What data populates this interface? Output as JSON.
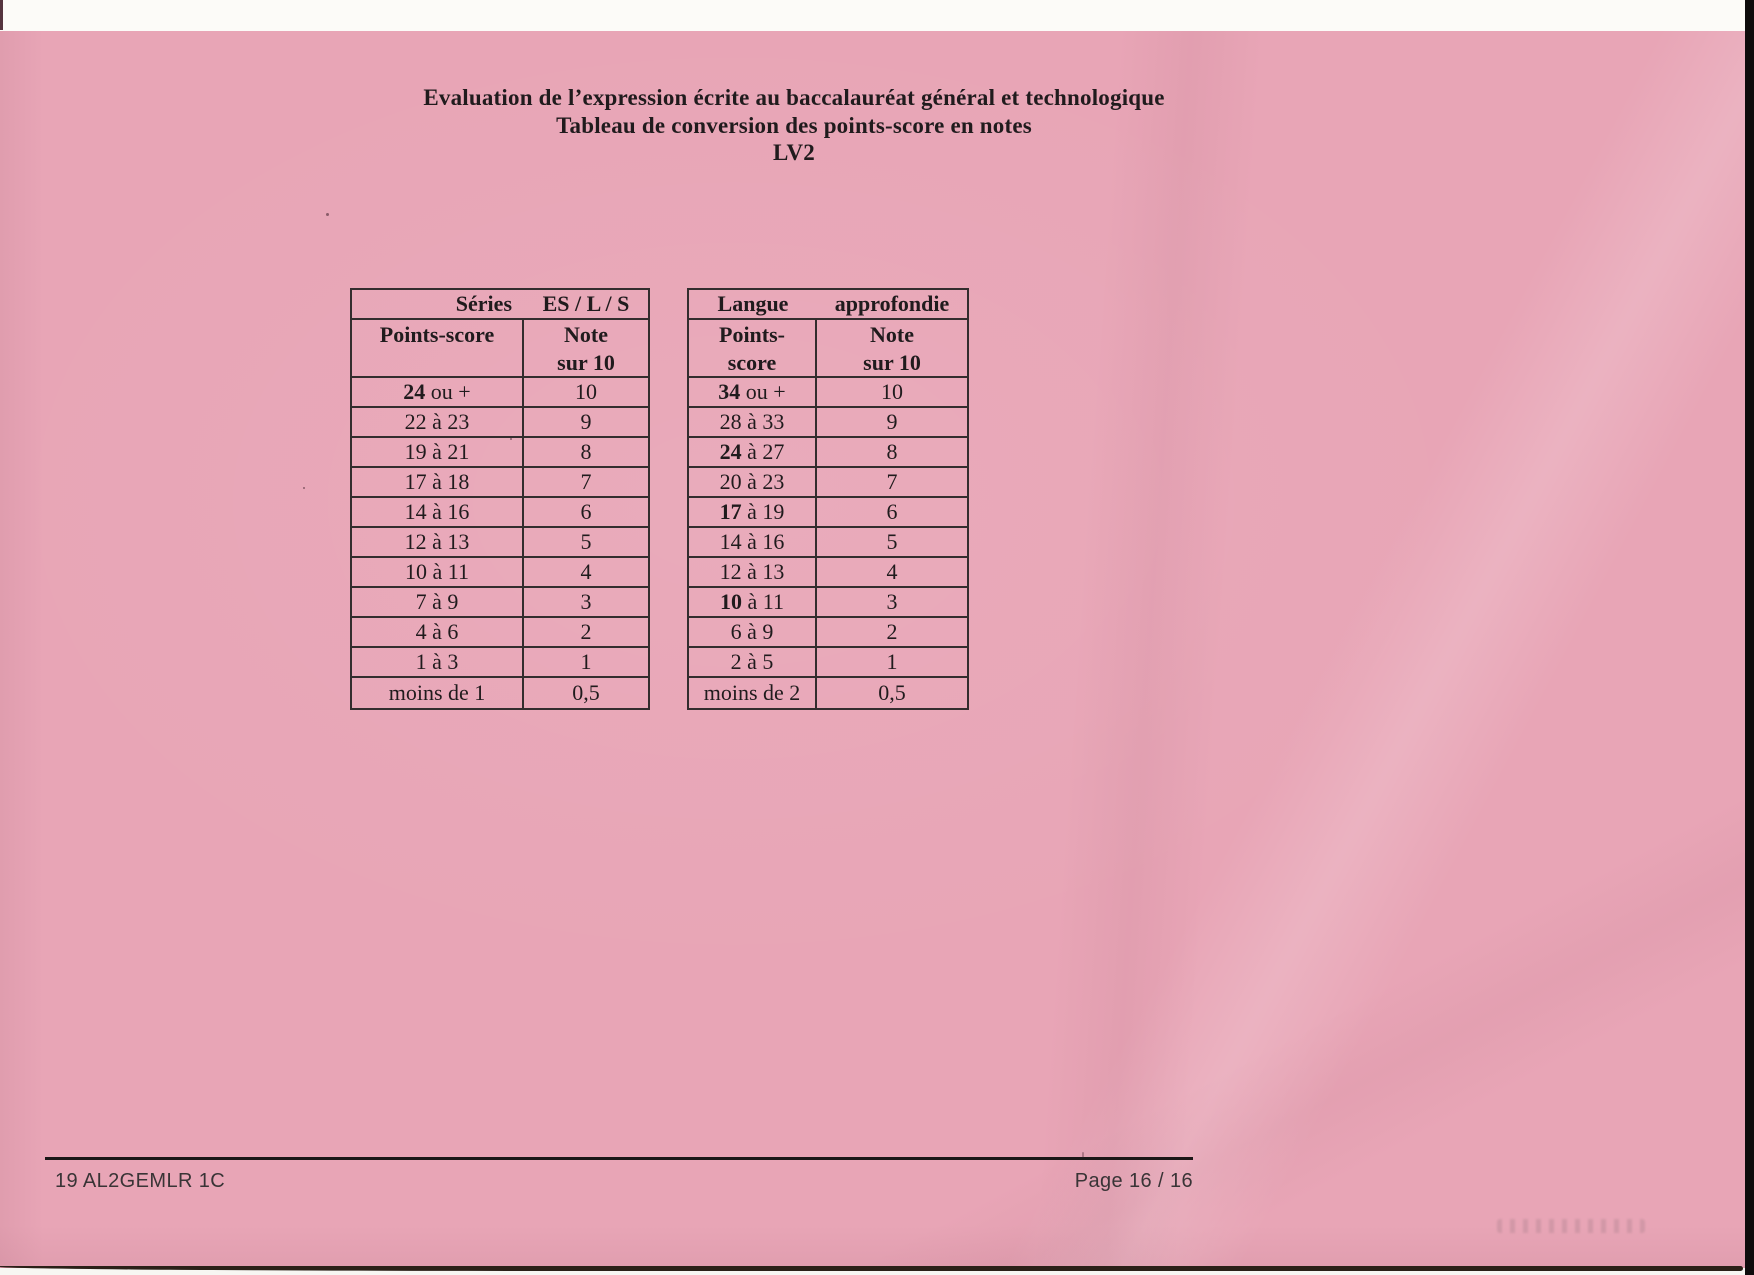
{
  "title": {
    "line1": "Evaluation de l’expression écrite au baccalauréat général et technologique",
    "line2": "Tableau de conversion des points-score en notes",
    "line3": "LV2"
  },
  "tables": {
    "left": {
      "header_label": "Séries",
      "header_value": "ES / L / S",
      "col1_header_line1": "Points-score",
      "col1_header_line2": "",
      "col2_header_line1": "Note",
      "col2_header_line2": "sur 10",
      "rows": [
        {
          "score_bold": "24",
          "score_rest": "ou +",
          "note": "10"
        },
        {
          "score_bold": "",
          "score_rest": "22 à 23",
          "note": "9"
        },
        {
          "score_bold": "",
          "score_rest": "19 à 21",
          "note": "8"
        },
        {
          "score_bold": "",
          "score_rest": "17 à 18",
          "note": "7"
        },
        {
          "score_bold": "",
          "score_rest": "14 à 16",
          "note": "6"
        },
        {
          "score_bold": "",
          "score_rest": "12 à 13",
          "note": "5"
        },
        {
          "score_bold": "",
          "score_rest": "10 à 11",
          "note": "4"
        },
        {
          "score_bold": "",
          "score_rest": "7 à 9",
          "note": "3"
        },
        {
          "score_bold": "",
          "score_rest": "4 à 6",
          "note": "2"
        },
        {
          "score_bold": "",
          "score_rest": "1 à 3",
          "note": "1"
        },
        {
          "score_bold": "",
          "score_rest": "moins de 1",
          "note": "0,5"
        }
      ]
    },
    "right": {
      "header_label": "Langue",
      "header_value": "approfondie",
      "col1_header_line1": "Points-",
      "col1_header_line2": "score",
      "col2_header_line1": "Note",
      "col2_header_line2": "sur 10",
      "rows": [
        {
          "score_bold": "34",
          "score_rest": "ou +",
          "note": "10"
        },
        {
          "score_bold": "",
          "score_rest": "28 à 33",
          "note": "9"
        },
        {
          "score_bold": "24",
          "score_rest": "à 27",
          "note": "8"
        },
        {
          "score_bold": "",
          "score_rest": "20 à 23",
          "note": "7"
        },
        {
          "score_bold": "17",
          "score_rest": "à 19",
          "note": "6"
        },
        {
          "score_bold": "",
          "score_rest": "14 à 16",
          "note": "5"
        },
        {
          "score_bold": "",
          "score_rest": "12 à 13",
          "note": "4"
        },
        {
          "score_bold": "10",
          "score_rest": "à 11",
          "note": "3"
        },
        {
          "score_bold": "",
          "score_rest": "6 à 9",
          "note": "2"
        },
        {
          "score_bold": "",
          "score_rest": "2 à 5",
          "note": "1"
        },
        {
          "score_bold": "",
          "score_rest": "moins de 2",
          "note": "0,5"
        }
      ]
    }
  },
  "footer": {
    "left": "19 AL2GEMLR 1C",
    "right": "Page 16 / 16"
  },
  "colors": {
    "paper_pink": "#e8a5b6",
    "ink": "#201b1d",
    "scanner_white": "#fcfbf8",
    "scanner_black_edge": "#0e0c0c"
  }
}
